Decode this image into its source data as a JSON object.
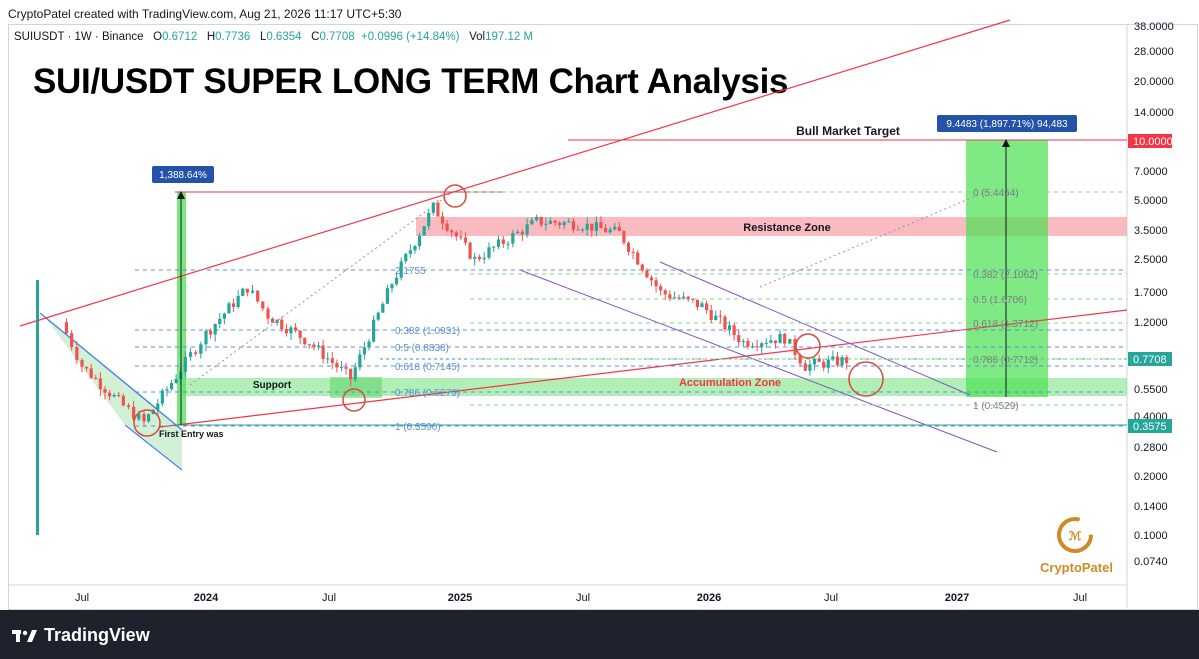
{
  "header": {
    "created_by": "CryptoPatel created with TradingView.com, Aug 21, 2026 11:17 UTC+5:30",
    "symbol": "SUIUSDT · 1W · Binance",
    "open_label": "O",
    "open": "0.6712",
    "high_label": "H",
    "high": "0.7736",
    "low_label": "L",
    "low": "0.6354",
    "close_label": "C",
    "close": "0.7708",
    "change": "+0.0996 (+14.84%)",
    "vol_label": "Vol",
    "vol": "197.12 M"
  },
  "title": "SUI/USDT SUPER LONG TERM Chart Analysis",
  "footer": {
    "brand": "TradingView"
  },
  "watermark": {
    "text": "CryptoPatel"
  },
  "chart_data": {
    "type": "candlestick",
    "title": "SUI/USDT SUPER LONG TERM Chart Analysis",
    "scale": "log",
    "y_ticks": [
      "38.0000",
      "28.0000",
      "20.0000",
      "14.0000",
      "7.0000",
      "5.0000",
      "3.5000",
      "2.5000",
      "1.7000",
      "1.2000",
      "0.5500",
      "0.4000",
      "0.2800",
      "0.2000",
      "0.1400",
      "0.1000",
      "0.0740"
    ],
    "x_ticks": [
      "Jul",
      "2024",
      "Jul",
      "2025",
      "Jul",
      "2026",
      "Jul",
      "2027",
      "Jul"
    ],
    "price_labels": [
      {
        "text": "10.0000",
        "color": "#f23645"
      },
      {
        "text": "0.7708",
        "color": "#26a69a"
      },
      {
        "text": "0.3575",
        "color": "#26a69a"
      }
    ],
    "fib_left": [
      "2.1755",
      "0.382 (1.0931)",
      "0.5 (0.8838)",
      "0.618 (0.7145)",
      "0.786 (0.5279)",
      "1 (0.3590)"
    ],
    "fib_right": [
      "0 (5.4454)",
      "0.382 (2.1062)",
      "0.5 (1.6706)",
      "0.618 (1.3712)",
      "0.786 (0.7712)",
      "1 (0.4529)"
    ],
    "annotations": {
      "bull_target": "Bull Market Target",
      "resistance": "Resistance Zone",
      "accumulation": "Accumulation Zone",
      "support": "Support",
      "first_entry": "First Entry was",
      "gain_left": "1,388.64%",
      "gain_right": "9.4483 (1,897.71%) 94,483"
    },
    "candles_approx": [
      {
        "x": "Jun 2023",
        "close": 1.2
      },
      {
        "x": "Jul 2023",
        "close": 0.72
      },
      {
        "x": "Sep 2023",
        "close": 0.45
      },
      {
        "x": "Oct 2023",
        "close": 0.37
      },
      {
        "x": "Dec 2023",
        "close": 0.75
      },
      {
        "x": "Jan 2024",
        "close": 1.05
      },
      {
        "x": "Mar 2024",
        "close": 1.8
      },
      {
        "x": "Apr 2024",
        "close": 1.3
      },
      {
        "x": "Jun 2024",
        "close": 0.95
      },
      {
        "x": "Aug 2024",
        "close": 0.62
      },
      {
        "x": "Oct 2024",
        "close": 1.9
      },
      {
        "x": "Dec 2024",
        "close": 4.6
      },
      {
        "x": "Feb 2025",
        "close": 2.5
      },
      {
        "x": "May 2025",
        "close": 3.9
      },
      {
        "x": "Jul 2025",
        "close": 3.8
      },
      {
        "x": "Sep 2025",
        "close": 3.4
      },
      {
        "x": "Nov 2025",
        "close": 1.7
      },
      {
        "x": "Jan 2026",
        "close": 1.45
      },
      {
        "x": "Mar 2026",
        "close": 0.95
      },
      {
        "x": "May 2026",
        "close": 1.0
      },
      {
        "x": "Jun 2026",
        "close": 0.72
      },
      {
        "x": "Aug 2026",
        "close": 0.7708
      }
    ]
  }
}
